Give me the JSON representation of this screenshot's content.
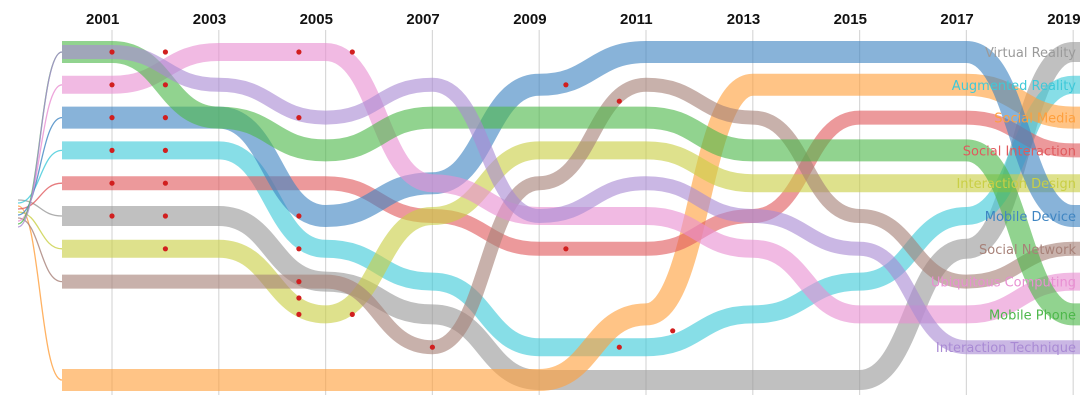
{
  "chart_data": {
    "type": "bump-streamgraph",
    "title": "",
    "xlabel": "",
    "ylabel": "",
    "x_tick_labels": [
      "2001",
      "2003",
      "2005",
      "2007",
      "2009",
      "2011",
      "2013",
      "2015",
      "2017",
      "2019"
    ],
    "rank_range": [
      1,
      11
    ],
    "series": [
      {
        "name": "Virtual Reality",
        "color": "#9a9a9a",
        "label_size": 16,
        "ranks": [
          6,
          6,
          8,
          9,
          11,
          11,
          11,
          11,
          7,
          1
        ]
      },
      {
        "name": "Augmented Reality",
        "color": "#3ec9d9",
        "label_size": 13,
        "ranks": [
          4,
          4,
          7,
          8,
          10,
          10,
          9,
          8,
          6,
          2
        ]
      },
      {
        "name": "Social Media",
        "color": "#ff9f3c",
        "label_size": 13,
        "ranks": [
          11,
          11,
          11,
          11,
          11,
          9,
          2,
          2,
          2,
          3
        ]
      },
      {
        "name": "Social Interaction",
        "color": "#e05a5e",
        "label_size": 13,
        "ranks": [
          5,
          5,
          5,
          6,
          7,
          7,
          6,
          3,
          3,
          4
        ]
      },
      {
        "name": "Interaction Design",
        "color": "#c9cf45",
        "label_size": 13,
        "ranks": [
          7,
          7,
          9,
          6,
          4,
          4,
          5,
          5,
          5,
          5
        ]
      },
      {
        "name": "Mobile Device",
        "color": "#3f85c2",
        "label_size": 13,
        "ranks": [
          3,
          3,
          6,
          5,
          2,
          1,
          1,
          1,
          1,
          6
        ]
      },
      {
        "name": "Social Network",
        "color": "#a78178",
        "label_size": 13,
        "ranks": [
          8,
          8,
          8,
          10,
          5,
          2,
          3,
          6,
          8,
          7
        ]
      },
      {
        "name": "Ubiquitous Computing",
        "color": "#e88fd2",
        "label_size": 13,
        "ranks": [
          2,
          1,
          1,
          5,
          6,
          6,
          7,
          9,
          9,
          8
        ]
      },
      {
        "name": "Mobile Phone",
        "color": "#4db84a",
        "label_size": 13,
        "ranks": [
          1,
          3,
          4,
          3,
          3,
          3,
          4,
          4,
          4,
          9
        ]
      },
      {
        "name": "Interaction Technique",
        "color": "#a98ad4",
        "label_size": 13,
        "ranks": [
          1,
          2,
          3,
          2,
          6,
          5,
          6,
          7,
          10,
          10
        ]
      }
    ],
    "highlight_markers": [
      {
        "year": "2001",
        "ranks": [
          1,
          2,
          3,
          4,
          5,
          6
        ]
      },
      {
        "year": "2002",
        "ranks": [
          1,
          2,
          3,
          4,
          5,
          6,
          7
        ]
      },
      {
        "year": "2004.5",
        "ranks": [
          1,
          3,
          6,
          7,
          8,
          8.5,
          9
        ]
      },
      {
        "year": "2005.5",
        "ranks": [
          1,
          9
        ]
      },
      {
        "year": "2007",
        "ranks": [
          10
        ]
      },
      {
        "year": "2009.5",
        "ranks": [
          2,
          7
        ]
      },
      {
        "year": "2010.5",
        "ranks": [
          2.5,
          10
        ]
      },
      {
        "year": "2011.5",
        "ranks": [
          9.5
        ]
      }
    ]
  }
}
